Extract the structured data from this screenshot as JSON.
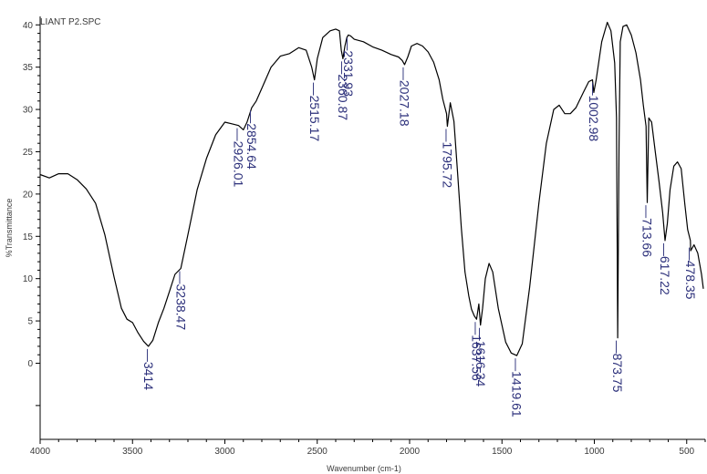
{
  "chart_data": {
    "type": "line",
    "title": "LIANT P2.SPC",
    "xlabel": "Wavenumber (cm-1)",
    "ylabel": "%Transmittance",
    "xlim": [
      4000,
      400
    ],
    "ylim": [
      -9,
      41
    ],
    "x_reversed": true,
    "x_ticks": [
      4000,
      3500,
      3000,
      2500,
      2000,
      1500,
      1000,
      500
    ],
    "y_ticks": [
      0,
      5,
      10,
      15,
      20,
      25,
      30,
      35,
      40
    ],
    "grid": false,
    "colors": {
      "line": "#000000",
      "labels": "#2b2f7a",
      "axis": "#000000"
    },
    "series": [
      {
        "x": [
          4000,
          3950,
          3900,
          3850,
          3800,
          3750,
          3700,
          3650,
          3600,
          3560,
          3530,
          3500,
          3470,
          3440,
          3414,
          3390,
          3360,
          3330,
          3300,
          3270,
          3238.47,
          3200,
          3150,
          3100,
          3050,
          3000,
          2960,
          2926.01,
          2900,
          2880,
          2854.64,
          2830,
          2800,
          2750,
          2700,
          2650,
          2600,
          2560,
          2530,
          2515.17,
          2500,
          2470,
          2430,
          2400,
          2380,
          2370,
          2360.87,
          2350,
          2340,
          2331.93,
          2320,
          2300,
          2250,
          2200,
          2150,
          2100,
          2060,
          2040,
          2027.18,
          2010,
          1990,
          1960,
          1930,
          1900,
          1870,
          1840,
          1820,
          1800,
          1795.72,
          1780,
          1760,
          1740,
          1720,
          1700,
          1680,
          1665,
          1650,
          1637.56,
          1625,
          1616.34,
          1605,
          1590,
          1570,
          1550,
          1520,
          1480,
          1450,
          1419.61,
          1390,
          1350,
          1300,
          1260,
          1220,
          1190,
          1160,
          1130,
          1100,
          1060,
          1030,
          1010,
          1002.98,
          990,
          960,
          930,
          910,
          890,
          880,
          873.75,
          866,
          860,
          845,
          825,
          800,
          775,
          750,
          735,
          720,
          713.66,
          705,
          690,
          670,
          650,
          630,
          617.22,
          605,
          590,
          570,
          550,
          530,
          510,
          495,
          480,
          478.35,
          460,
          440,
          420,
          410
        ],
        "y": [
          22.3,
          21.9,
          22.4,
          22.4,
          21.7,
          20.6,
          18.9,
          15.2,
          10.2,
          6.5,
          5.2,
          4.8,
          3.6,
          2.6,
          2.0,
          2.7,
          4.8,
          6.5,
          8.5,
          10.5,
          11.2,
          15.2,
          20.5,
          24.2,
          27.0,
          28.5,
          28.3,
          28.1,
          27.6,
          28.5,
          30.2,
          31.0,
          32.5,
          35.0,
          36.3,
          36.6,
          37.3,
          37.0,
          35.0,
          33.5,
          36.0,
          38.5,
          39.3,
          39.5,
          39.3,
          37.0,
          36.0,
          37.5,
          38.5,
          38.8,
          38.7,
          38.3,
          38.0,
          37.4,
          37.0,
          36.5,
          36.2,
          35.8,
          35.3,
          36.2,
          37.5,
          37.8,
          37.5,
          36.8,
          35.6,
          33.5,
          31.2,
          29.5,
          28.0,
          30.8,
          28.6,
          22.5,
          16.0,
          10.8,
          8.0,
          6.4,
          5.6,
          5.2,
          7.0,
          4.5,
          6.5,
          10.0,
          11.8,
          10.8,
          6.5,
          2.5,
          1.2,
          0.9,
          2.3,
          9.0,
          19.0,
          26.0,
          30.0,
          30.5,
          29.5,
          29.5,
          30.2,
          32.0,
          33.3,
          33.5,
          32.0,
          33.5,
          38.0,
          40.3,
          39.3,
          35.5,
          29.0,
          3.0,
          26.0,
          38.0,
          39.8,
          40.0,
          38.8,
          36.7,
          33.5,
          30.5,
          28.0,
          19.0,
          29.0,
          28.5,
          25.0,
          21.5,
          17.8,
          14.5,
          16.5,
          20.5,
          23.3,
          23.8,
          23.0,
          18.8,
          15.8,
          14.5,
          13.3,
          14.0,
          13.0,
          10.5,
          8.8
        ]
      }
    ],
    "peak_labels": [
      {
        "text": "3414",
        "x": 3414,
        "y": 2.0
      },
      {
        "text": "3238.47",
        "x": 3238.47,
        "y": 11.2
      },
      {
        "text": "2926.01",
        "x": 2926.01,
        "y": 28.1
      },
      {
        "text": "2854.64",
        "x": 2854.64,
        "y": 30.2
      },
      {
        "text": "2515.17",
        "x": 2515.17,
        "y": 33.5
      },
      {
        "text": "2360.87",
        "x": 2360.87,
        "y": 36.0
      },
      {
        "text": "2331.93",
        "x": 2331.93,
        "y": 38.8
      },
      {
        "text": "2027.18",
        "x": 2027.18,
        "y": 35.3
      },
      {
        "text": "1795.72",
        "x": 1795.72,
        "y": 28.0
      },
      {
        "text": "1637.56",
        "x": 1637.56,
        "y": 5.2
      },
      {
        "text": "1616.34",
        "x": 1616.34,
        "y": 4.5
      },
      {
        "text": "1419.61",
        "x": 1419.61,
        "y": 0.9
      },
      {
        "text": "1002.98",
        "x": 1002.98,
        "y": 33.5
      },
      {
        "text": "873.75",
        "x": 873.75,
        "y": 3.0
      },
      {
        "text": "713.66",
        "x": 713.66,
        "y": 19.0
      },
      {
        "text": "617.22",
        "x": 617.22,
        "y": 14.5
      },
      {
        "text": "478.35",
        "x": 478.35,
        "y": 14.0
      }
    ]
  }
}
